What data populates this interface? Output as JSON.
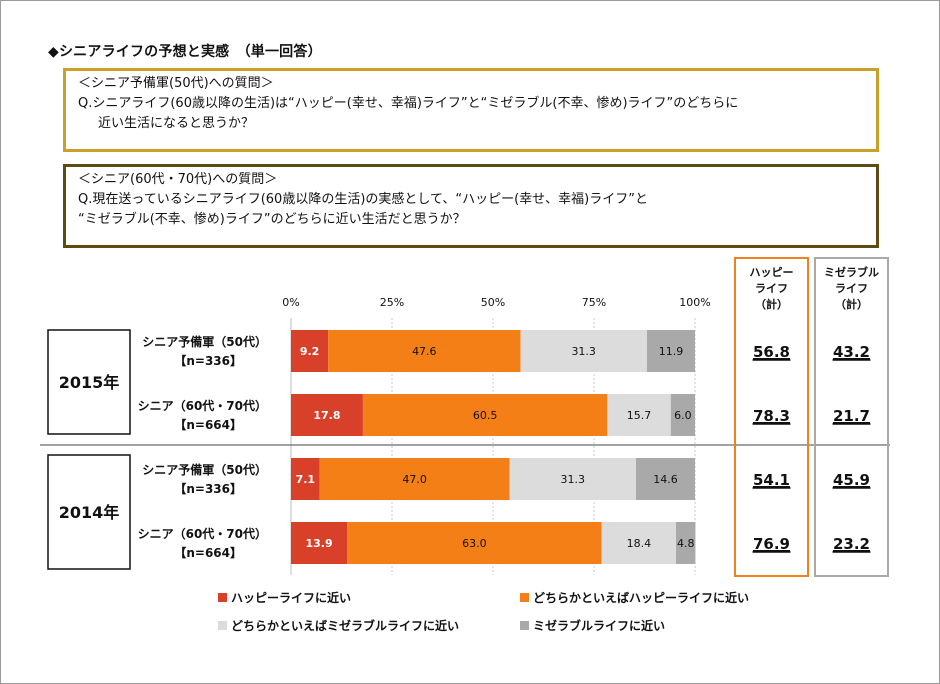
{
  "title": "◆シニアライフの予想と実感　（単一回答）",
  "question1": {
    "heading": "＜シニア予備軍(50代)への質問＞",
    "line1": "Q.シニアライフ(60歳以降の生活)は“ハッピー(幸せ、幸福)ライフ”と“ミゼラブル(不幸、惨め)ライフ”のどちらに",
    "line2": "近い生活になると思うか？"
  },
  "question2": {
    "heading": "＜シニア(60代・70代)への質問＞",
    "line1": "Q.現在送っているシニアライフ(60歳以降の生活)の実感として、“ハッピー(幸せ、幸福)ライフ”と",
    "line2": "“ミゼラブル(不幸、惨め)ライフ”のどちらに近い生活だと思うか？"
  },
  "chart_data": {
    "type": "bar",
    "orientation": "horizontal-stacked-100",
    "x_ticks": [
      "0%",
      "25%",
      "50%",
      "75%",
      "100%"
    ],
    "xlim": [
      0,
      100
    ],
    "groups": [
      {
        "label": "2015年",
        "rows": [
          0,
          1
        ]
      },
      {
        "label": "2014年",
        "rows": [
          2,
          3
        ]
      }
    ],
    "rows": [
      {
        "label1": "シニア予備軍（50代）",
        "label2": "【n=336】",
        "values": [
          9.2,
          47.6,
          31.3,
          11.9
        ],
        "value_labels": [
          "9.2",
          "47.6",
          "31.3",
          "11.9"
        ],
        "happy": "56.8",
        "miserable": "43.2"
      },
      {
        "label1": "シニア（60代・70代）",
        "label2": "【n=664】",
        "values": [
          17.8,
          60.5,
          15.7,
          6.0
        ],
        "value_labels": [
          "17.8",
          "60.5",
          "15.7",
          "6.0"
        ],
        "happy": "78.3",
        "miserable": "21.7"
      },
      {
        "label1": "シニア予備軍（50代）",
        "label2": "【n=336】",
        "values": [
          7.1,
          47.0,
          31.3,
          14.6
        ],
        "value_labels": [
          "7.1",
          "47.0",
          "31.3",
          "14.6"
        ],
        "happy": "54.1",
        "miserable": "45.9"
      },
      {
        "label1": "シニア（60代・70代）",
        "label2": "【n=664】",
        "values": [
          13.9,
          63.0,
          18.4,
          4.8
        ],
        "value_labels": [
          "13.9",
          "63.0",
          "18.4",
          "4.8"
        ],
        "happy": "76.9",
        "miserable": "23.2"
      }
    ],
    "series": [
      {
        "name": "ハッピーライフに近い",
        "color": "#d8402a",
        "label_color": "#ffffff"
      },
      {
        "name": "どちらかといえばハッピーライフに近い",
        "color": "#f57f17",
        "label_color": "#111111"
      },
      {
        "name": "どちらかといえばミゼラブルライフに近い",
        "color": "#dcdcdc",
        "label_color": "#111111"
      },
      {
        "name": "ミゼラブルライフに近い",
        "color": "#a9a9a9",
        "label_color": "#111111"
      }
    ],
    "summary_columns": [
      {
        "header": [
          "ハッピー",
          "ライフ",
          "（計）"
        ],
        "color": "#f08020"
      },
      {
        "header": [
          "ミゼラブル",
          "ライフ",
          "（計）"
        ],
        "color": "#a9a9a9"
      }
    ]
  }
}
